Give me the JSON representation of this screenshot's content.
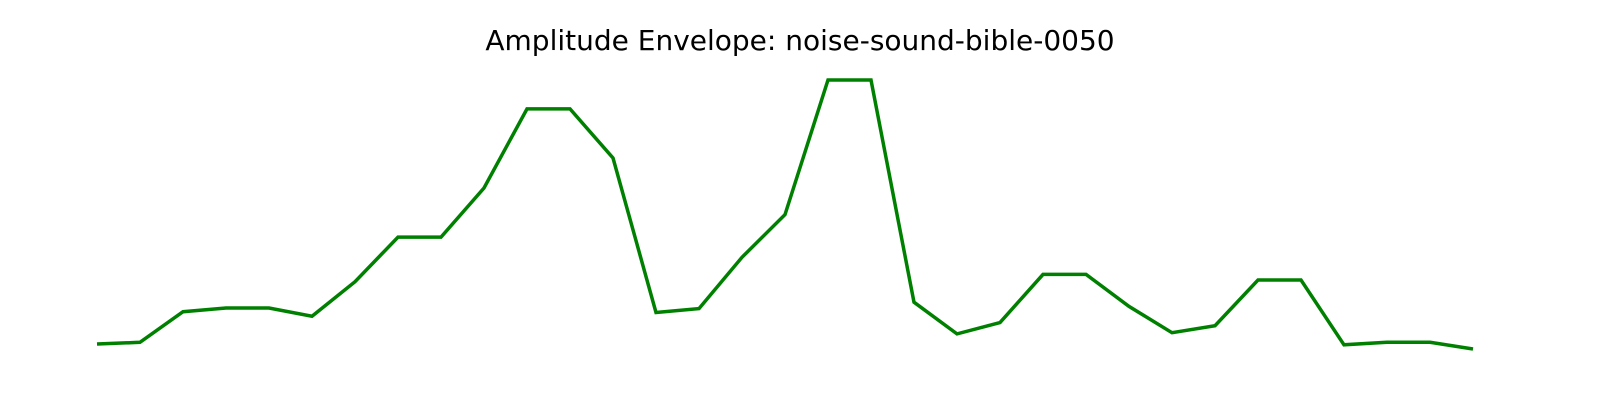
{
  "chart_data": {
    "type": "line",
    "title": "Amplitude Envelope: noise-sound-bible-0050",
    "xlabel": "",
    "ylabel": "",
    "axes_visible": false,
    "grid": false,
    "legend": false,
    "color": "#008000",
    "x": [
      0,
      1,
      2,
      3,
      4,
      5,
      6,
      7,
      8,
      9,
      10,
      11,
      12,
      13,
      14,
      15,
      16,
      17,
      18,
      19,
      20,
      21,
      22,
      23,
      24,
      25,
      26,
      27,
      28,
      29,
      30,
      31,
      32
    ],
    "values": [
      0.018,
      0.024,
      0.133,
      0.146,
      0.146,
      0.117,
      0.24,
      0.399,
      0.399,
      0.574,
      0.856,
      0.856,
      0.681,
      0.13,
      0.144,
      0.327,
      0.479,
      0.959,
      0.959,
      0.167,
      0.054,
      0.094,
      0.266,
      0.266,
      0.152,
      0.058,
      0.083,
      0.246,
      0.246,
      0.015,
      0.024,
      0.024,
      0
    ]
  }
}
